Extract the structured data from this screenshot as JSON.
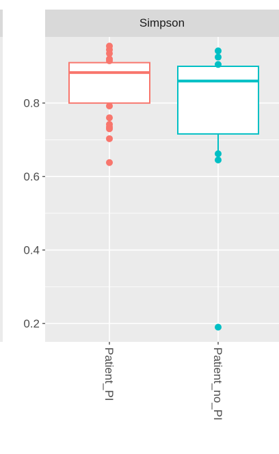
{
  "chart_data": {
    "type": "box",
    "facet_title": "Simpson",
    "ylim": [
      0.15,
      0.98
    ],
    "y_ticks": [
      {
        "value": 0.2,
        "label": "0.2"
      },
      {
        "value": 0.4,
        "label": "0.4"
      },
      {
        "value": 0.6,
        "label": "0.6"
      },
      {
        "value": 0.8,
        "label": "0.8"
      }
    ],
    "categories": [
      "Patient_PI",
      "Patient_no_PI"
    ],
    "series": [
      {
        "category": "Patient_PI",
        "color": "#F8766D",
        "whisker_low": 0.8,
        "q1": 0.8,
        "median": 0.883,
        "q3": 0.91,
        "whisker_high": 0.91,
        "outliers": [
          0.955,
          0.945,
          0.935,
          0.92,
          0.915,
          0.792,
          0.76,
          0.742,
          0.735,
          0.73,
          0.703,
          0.638
        ]
      },
      {
        "category": "Patient_no_PI",
        "color": "#00BFC4",
        "whisker_low": 0.662,
        "q1": 0.716,
        "median": 0.86,
        "q3": 0.9,
        "whisker_high": 0.9,
        "outliers": [
          0.942,
          0.925,
          0.905,
          0.662,
          0.645,
          0.19
        ]
      }
    ],
    "colors": {
      "panel_bg": "#EBEBEB",
      "strip_bg": "#D9D9D9",
      "grid_major": "#FFFFFF",
      "axis_text": "#4D4D4D",
      "strip_text": "#1A1A1A"
    },
    "grid": true,
    "legend": "none"
  }
}
